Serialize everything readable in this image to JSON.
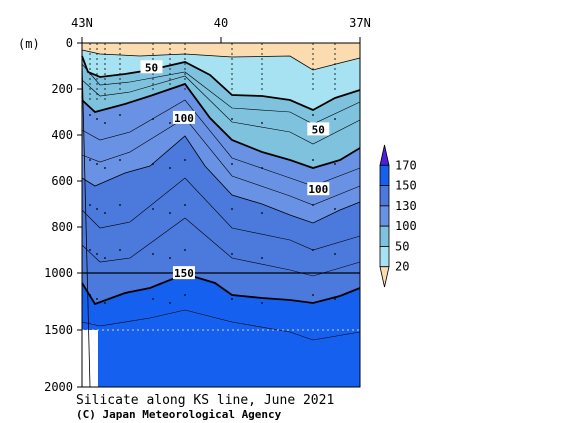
{
  "chart_data": {
    "type": "contour",
    "title": "Silicate along KS line, June 2021",
    "credit": "(C) Japan Meteorological Agency",
    "y_unit_label": "(m)",
    "x_ticks": [
      {
        "label": "43N",
        "lat": 43
      },
      {
        "label": "40",
        "lat": 40
      },
      {
        "label": "37N",
        "lat": 37
      }
    ],
    "y_ticks": [
      {
        "label": "0",
        "depth": 0
      },
      {
        "label": "200",
        "depth": 200
      },
      {
        "label": "400",
        "depth": 400
      },
      {
        "label": "600",
        "depth": 600
      },
      {
        "label": "800",
        "depth": 800
      },
      {
        "label": "1000",
        "depth": 1000
      },
      {
        "label": "1500",
        "depth": 1500
      },
      {
        "label": "2000",
        "depth": 2000
      }
    ],
    "xlim": [
      43,
      37
    ],
    "ylim": [
      0,
      2000
    ],
    "y_axis_break_at": 1000,
    "contour_labels": [
      {
        "text": "50",
        "lat": 41.5,
        "depth": 110
      },
      {
        "text": "100",
        "lat": 40.8,
        "depth": 330
      },
      {
        "text": "50",
        "lat": 37.9,
        "depth": 380
      },
      {
        "text": "100",
        "lat": 37.9,
        "depth": 640
      },
      {
        "text": "150",
        "lat": 40.8,
        "depth": 1010
      }
    ],
    "colorbar": {
      "levels": [
        20,
        50,
        100,
        130,
        150,
        170
      ],
      "tick_labels": [
        "170",
        "150",
        "130",
        "100",
        "50",
        "20"
      ],
      "colors": [
        "#fbdcb0",
        "#a7e2f2",
        "#7ec2dd",
        "#6a92e4",
        "#4b79dc",
        "#1560ee",
        "#4b1fe0"
      ]
    },
    "layers": [
      {
        "name": "lt20",
        "color": "#fbdcb0"
      },
      {
        "name": "20-50",
        "color": "#a7e2f2"
      },
      {
        "name": "50-100",
        "color": "#7ec2dd"
      },
      {
        "name": "100-130",
        "color": "#6a92e4"
      },
      {
        "name": "130-150",
        "color": "#4b79dc"
      },
      {
        "name": "gt150",
        "color": "#1560ee"
      }
    ]
  }
}
